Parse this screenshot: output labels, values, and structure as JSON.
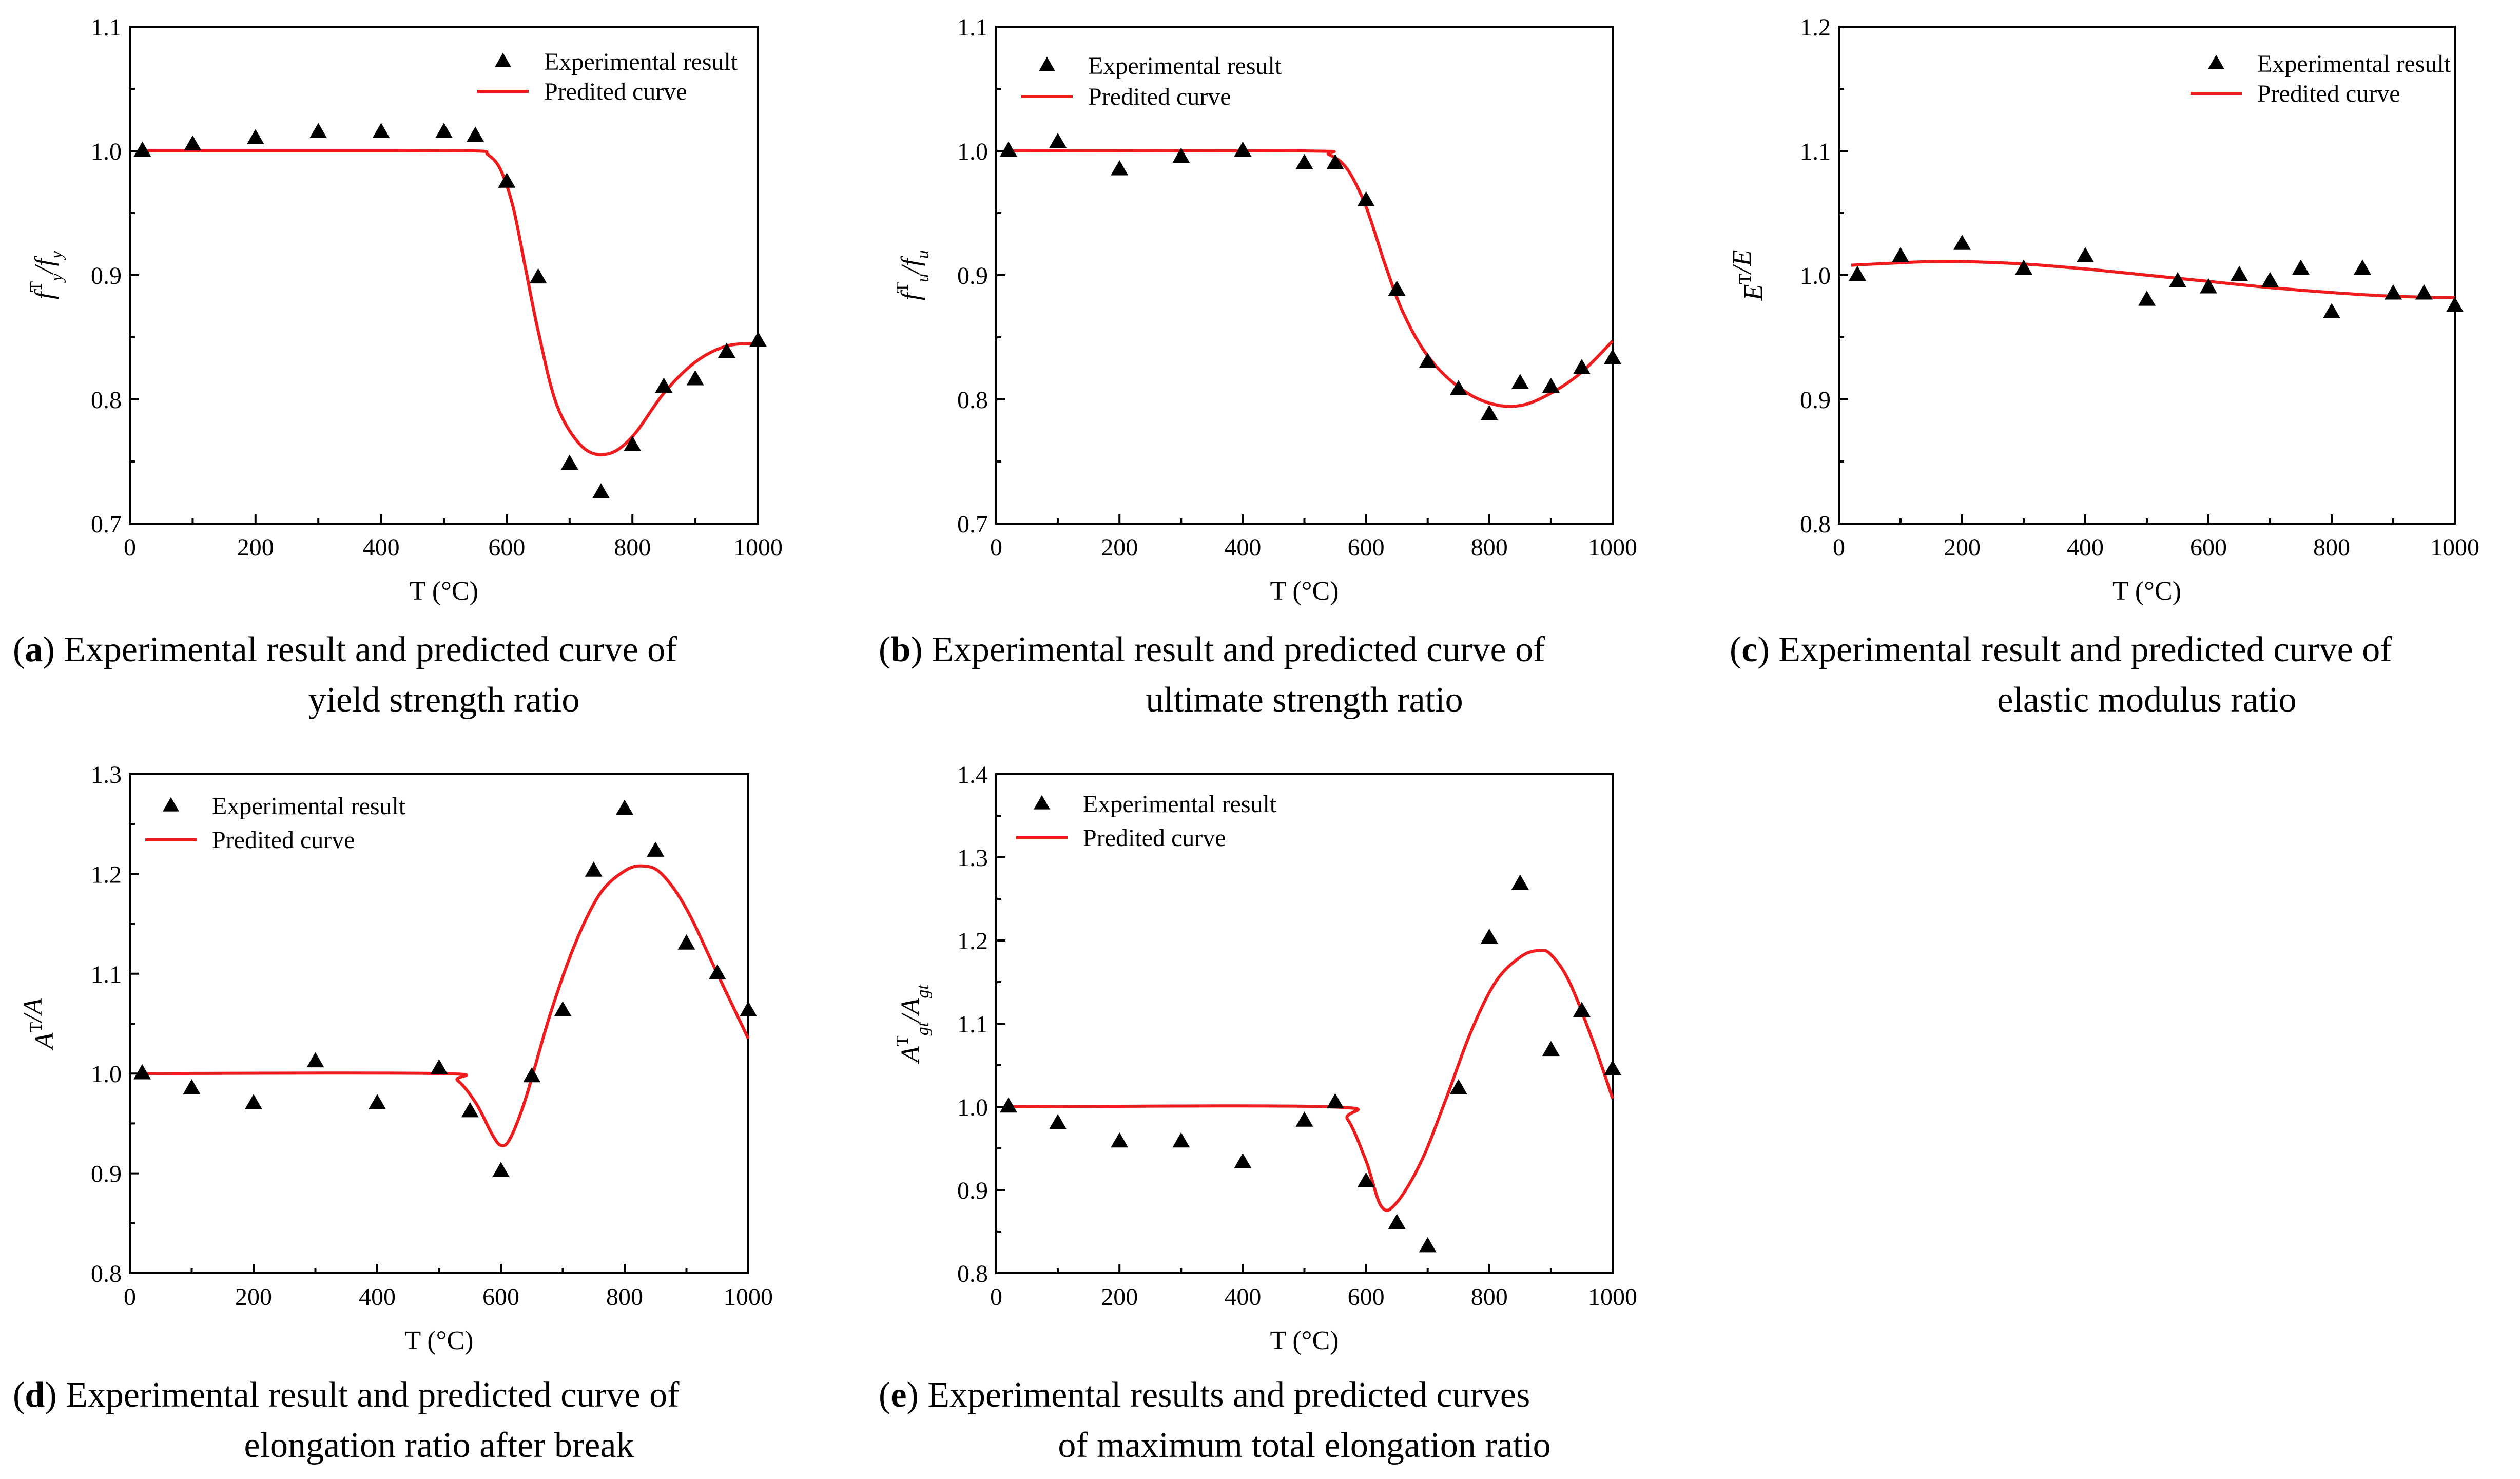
{
  "chart_data": [
    {
      "type": "scatter",
      "id": "a",
      "xlabel": "T (°C)",
      "ylabel": {
        "base": "f",
        "sup": "T",
        "sub": "y",
        "sep": "/",
        "base2": "f",
        "sub2": "y"
      },
      "xlim": [
        0,
        1000
      ],
      "ylim": [
        0.7,
        1.1
      ],
      "xticks": [
        "0",
        "200",
        "400",
        "600",
        "800",
        "1000"
      ],
      "yticks": [
        "0.7",
        "0.8",
        "0.9",
        "1.0",
        "1.1"
      ],
      "legend": {
        "experimental": "Experimental result",
        "predicted": "Predited curve"
      },
      "legend_position": "top-right",
      "series": [
        {
          "name": "Experimental result",
          "kind": "markers",
          "x": [
            20,
            100,
            200,
            300,
            400,
            500,
            550,
            600,
            650,
            700,
            750,
            800,
            850,
            900,
            950,
            1000
          ],
          "y": [
            1.0,
            1.005,
            1.01,
            1.015,
            1.015,
            1.015,
            1.012,
            0.975,
            0.898,
            0.748,
            0.725,
            0.763,
            0.81,
            0.816,
            0.838,
            0.847
          ]
        },
        {
          "name": "Predited curve",
          "kind": "line",
          "x": [
            20,
            400,
            550,
            570,
            590,
            610,
            630,
            650,
            680,
            720,
            760,
            800,
            850,
            900,
            950,
            1000
          ],
          "y": [
            1.0,
            1.0,
            1.0,
            0.997,
            0.985,
            0.955,
            0.905,
            0.855,
            0.795,
            0.762,
            0.756,
            0.77,
            0.805,
            0.83,
            0.843,
            0.845
          ]
        }
      ],
      "caption": {
        "letter": "a",
        "line1": "Experimental result and predicted curve of",
        "line2": "yield strength ratio"
      }
    },
    {
      "type": "scatter",
      "id": "b",
      "xlabel": "T (°C)",
      "ylabel": {
        "base": "f",
        "sup": "T",
        "sub": "u",
        "sep": "/",
        "base2": "f",
        "sub2": "u"
      },
      "xlim": [
        0,
        1000
      ],
      "ylim": [
        0.7,
        1.1
      ],
      "xticks": [
        "0",
        "200",
        "400",
        "600",
        "800",
        "1000"
      ],
      "yticks": [
        "0.7",
        "0.8",
        "0.9",
        "1.0",
        "1.1"
      ],
      "legend": {
        "experimental": "Experimental result",
        "predicted": "Predited curve"
      },
      "legend_position": "top-left",
      "series": [
        {
          "name": "Experimental result",
          "kind": "markers",
          "x": [
            20,
            100,
            200,
            300,
            400,
            500,
            550,
            600,
            650,
            700,
            750,
            800,
            850,
            900,
            950,
            1000
          ],
          "y": [
            1.0,
            1.007,
            0.985,
            0.995,
            1.0,
            0.99,
            0.99,
            0.96,
            0.888,
            0.83,
            0.808,
            0.788,
            0.813,
            0.81,
            0.825,
            0.833
          ]
        },
        {
          "name": "Predited curve",
          "kind": "line",
          "x": [
            20,
            500,
            540,
            570,
            600,
            630,
            660,
            700,
            750,
            800,
            850,
            900,
            950,
            1000
          ],
          "y": [
            1.0,
            1.0,
            0.997,
            0.985,
            0.955,
            0.91,
            0.87,
            0.835,
            0.81,
            0.797,
            0.795,
            0.805,
            0.822,
            0.847
          ]
        }
      ],
      "caption": {
        "letter": "b",
        "line1": "Experimental result and predicted curve of",
        "line2": "ultimate strength ratio"
      }
    },
    {
      "type": "scatter",
      "id": "c",
      "xlabel": "T (°C)",
      "ylabel": {
        "base": "E",
        "sup": "T",
        "sub": "",
        "sep": "/",
        "base2": "E",
        "sub2": ""
      },
      "xlim": [
        0,
        1000
      ],
      "ylim": [
        0.8,
        1.2
      ],
      "xticks": [
        "0",
        "200",
        "400",
        "600",
        "800",
        "1000"
      ],
      "yticks": [
        "0.8",
        "0.9",
        "1.0",
        "1.1",
        "1.2"
      ],
      "legend": {
        "experimental": "Experimental result",
        "predicted": "Predited curve"
      },
      "legend_position": "top-right",
      "series": [
        {
          "name": "Experimental result",
          "kind": "markers",
          "x": [
            30,
            100,
            200,
            300,
            400,
            500,
            550,
            600,
            650,
            700,
            750,
            800,
            850,
            900,
            950,
            1000
          ],
          "y": [
            1.0,
            1.015,
            1.025,
            1.005,
            1.015,
            0.98,
            0.995,
            0.99,
            1.0,
            0.995,
            1.005,
            0.97,
            1.005,
            0.985,
            0.985,
            0.975
          ]
        },
        {
          "name": "Predited curve",
          "kind": "line",
          "x": [
            20,
            100,
            150,
            200,
            300,
            400,
            500,
            600,
            700,
            800,
            900,
            1000
          ],
          "y": [
            1.008,
            1.01,
            1.011,
            1.011,
            1.009,
            1.005,
            1.0,
            0.995,
            0.99,
            0.986,
            0.983,
            0.982
          ]
        }
      ],
      "caption": {
        "letter": "c",
        "line1": "Experimental result and predicted curve of",
        "line2": "elastic modulus ratio"
      }
    },
    {
      "type": "scatter",
      "id": "d",
      "xlabel": "T (°C)",
      "ylabel": {
        "base": "A",
        "sup": "T",
        "sub": "",
        "sep": "/",
        "base2": "A",
        "sub2": ""
      },
      "xlim": [
        0,
        1000
      ],
      "ylim": [
        0.8,
        1.3
      ],
      "xticks": [
        "0",
        "200",
        "400",
        "600",
        "800",
        "1000"
      ],
      "yticks": [
        "0.8",
        "0.9",
        "1.0",
        "1.1",
        "1.2",
        "1.3"
      ],
      "legend": {
        "experimental": "Experimental result",
        "predicted": "Predited curve"
      },
      "legend_position": "top-left",
      "series": [
        {
          "name": "Experimental result",
          "kind": "markers",
          "x": [
            20,
            100,
            200,
            300,
            400,
            500,
            550,
            600,
            650,
            700,
            750,
            800,
            850,
            900,
            950,
            1000
          ],
          "y": [
            1.0,
            0.985,
            0.97,
            1.012,
            0.97,
            1.005,
            0.962,
            0.902,
            0.997,
            1.063,
            1.203,
            1.265,
            1.223,
            1.13,
            1.1,
            1.063
          ]
        },
        {
          "name": "Predited curve",
          "kind": "line",
          "x": [
            20,
            500,
            530,
            560,
            585,
            600,
            615,
            640,
            680,
            720,
            760,
            800,
            830,
            860,
            900,
            950,
            1000
          ],
          "y": [
            1.0,
            1.0,
            0.993,
            0.97,
            0.94,
            0.928,
            0.935,
            0.975,
            1.06,
            1.13,
            1.18,
            1.203,
            1.208,
            1.2,
            1.165,
            1.1,
            1.035
          ]
        }
      ],
      "caption": {
        "letter": "d",
        "line1": "Experimental result and predicted curve of",
        "line2": "elongation ratio after break"
      }
    },
    {
      "type": "scatter",
      "id": "e",
      "xlabel": "T (°C)",
      "ylabel": {
        "base": "A",
        "sup": "T",
        "sub": "gt",
        "sep": "/",
        "base2": "A",
        "sub2": "gt"
      },
      "xlim": [
        0,
        1000
      ],
      "ylim": [
        0.8,
        1.4
      ],
      "xticks": [
        "0",
        "200",
        "400",
        "600",
        "800",
        "1000"
      ],
      "yticks": [
        "0.8",
        "0.9",
        "1.0",
        "1.1",
        "1.2",
        "1.3",
        "1.4"
      ],
      "legend": {
        "experimental": "Experimental result",
        "predicted": "Predited curve"
      },
      "legend_position": "top-left",
      "series": [
        {
          "name": "Experimental result",
          "kind": "markers",
          "x": [
            20,
            100,
            200,
            300,
            400,
            500,
            550,
            600,
            650,
            700,
            750,
            800,
            850,
            900,
            950,
            1000
          ],
          "y": [
            1.0,
            0.98,
            0.958,
            0.958,
            0.933,
            0.983,
            1.005,
            0.91,
            0.86,
            0.832,
            1.022,
            1.203,
            1.268,
            1.068,
            1.115,
            1.045
          ]
        },
        {
          "name": "Predited curve",
          "kind": "line",
          "x": [
            20,
            540,
            570,
            600,
            625,
            650,
            690,
            730,
            770,
            810,
            850,
            880,
            900,
            930,
            970,
            1000
          ],
          "y": [
            1.0,
            1.0,
            0.985,
            0.935,
            0.88,
            0.885,
            0.935,
            1.01,
            1.09,
            1.15,
            1.18,
            1.188,
            1.183,
            1.15,
            1.075,
            1.01
          ]
        }
      ],
      "caption": {
        "letter": "e",
        "line1": "Experimental results and predicted curves",
        "line2": "of maximum total elongation ratio"
      }
    }
  ]
}
